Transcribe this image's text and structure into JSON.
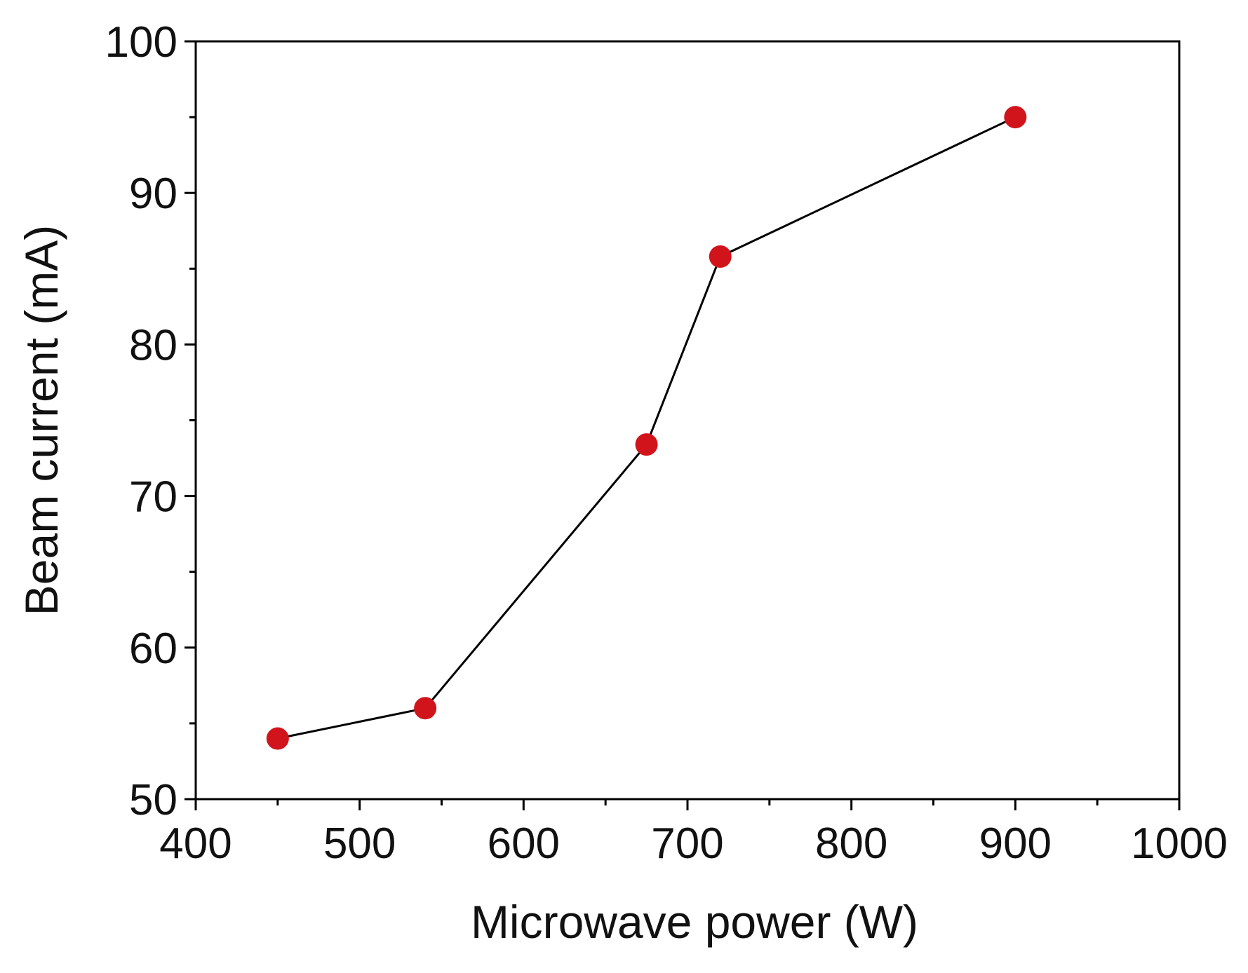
{
  "chart_data": {
    "type": "line",
    "title": "",
    "xlabel": "Microwave power (W)",
    "ylabel": "Beam current (mA)",
    "xlim": [
      400,
      1000
    ],
    "ylim": [
      50,
      100
    ],
    "x_ticks": [
      400,
      500,
      600,
      700,
      800,
      900,
      1000
    ],
    "y_ticks": [
      50,
      60,
      70,
      80,
      90,
      100
    ],
    "x_tick_labels": [
      "400",
      "500",
      "600",
      "700",
      "800",
      "900",
      "1000"
    ],
    "y_tick_labels": [
      "50",
      "60",
      "70",
      "80",
      "90",
      "100"
    ],
    "x_minor_step": 50,
    "y_minor_step": 5,
    "grid": false,
    "legend": "none",
    "series": [
      {
        "name": "Beam current",
        "x": [
          450,
          540,
          675,
          720,
          900
        ],
        "values": [
          54,
          56,
          73.4,
          85.8,
          95
        ]
      }
    ],
    "colors": {
      "marker": "#d1141b",
      "line": "#000000",
      "axis": "#000000"
    }
  }
}
